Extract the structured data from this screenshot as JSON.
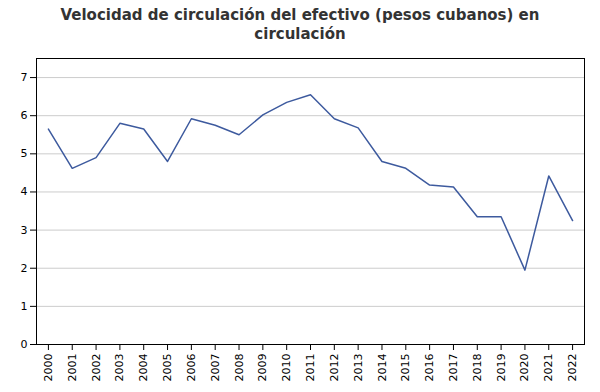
{
  "chart_data": {
    "type": "line",
    "title": "Velocidad de circulación del efectivo (pesos cubanos) en\ncirculación",
    "x": [
      2000,
      2001,
      2002,
      2003,
      2004,
      2005,
      2006,
      2007,
      2008,
      2009,
      2010,
      2011,
      2012,
      2013,
      2014,
      2015,
      2016,
      2017,
      2018,
      2019,
      2020,
      2021,
      2022
    ],
    "values": [
      5.65,
      4.62,
      4.9,
      5.8,
      5.65,
      4.8,
      5.92,
      5.75,
      5.5,
      6.02,
      6.35,
      6.55,
      5.92,
      5.68,
      4.8,
      4.62,
      4.18,
      4.13,
      3.35,
      3.35,
      1.95,
      4.42,
      3.25
    ],
    "color": "#3d5a9e",
    "xlim": [
      1999.5,
      2022.5
    ],
    "xticks": [
      2000,
      2001,
      2002,
      2003,
      2004,
      2005,
      2006,
      2007,
      2008,
      2009,
      2010,
      2011,
      2012,
      2013,
      2014,
      2015,
      2016,
      2017,
      2018,
      2019,
      2020,
      2021,
      2022
    ],
    "ylim": [
      0,
      7.5
    ],
    "yticks": [
      0,
      1,
      2,
      3,
      4,
      5,
      6,
      7
    ],
    "grid": "y"
  }
}
